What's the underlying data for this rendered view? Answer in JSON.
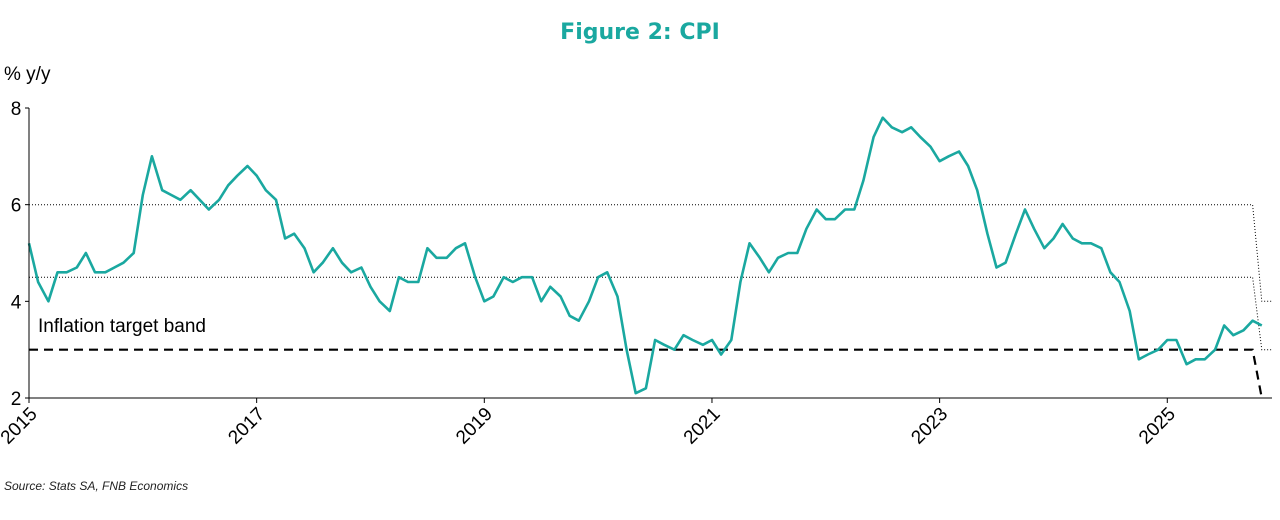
{
  "figure": {
    "title": "Figure 2: CPI",
    "source": "Source: Stats SA, FNB Economics"
  },
  "colors": {
    "cpi_line": "#1aa8a0",
    "band_line": "#000000",
    "title": "#1aa8a0"
  },
  "chart_data": {
    "type": "line",
    "title": "Figure 2: CPI",
    "ylabel": "% y/y",
    "xlabel": "",
    "ylim": [
      2,
      8
    ],
    "xlim": [
      2015,
      2025.92
    ],
    "y_ticks": [
      "2",
      "4",
      "6",
      "8"
    ],
    "x_ticks": [
      "2015",
      "2017",
      "2019",
      "2021",
      "2023",
      "2025"
    ],
    "grid": false,
    "legend": "none",
    "annotations": [
      "Inflation target band"
    ],
    "series": [
      {
        "values_format": "[year_fraction, percent]",
        "x_step": "monthly",
        "points": [
          [
            2015.0,
            5.2
          ],
          [
            2015.08,
            4.4
          ],
          [
            2015.17,
            4.0
          ],
          [
            2015.25,
            4.6
          ],
          [
            2015.33,
            4.6
          ],
          [
            2015.42,
            4.7
          ],
          [
            2015.5,
            5.0
          ],
          [
            2015.58,
            4.6
          ],
          [
            2015.67,
            4.6
          ],
          [
            2015.75,
            4.7
          ],
          [
            2015.83,
            4.8
          ],
          [
            2015.92,
            5.0
          ],
          [
            2016.0,
            6.2
          ],
          [
            2016.08,
            7.0
          ],
          [
            2016.17,
            6.3
          ],
          [
            2016.25,
            6.2
          ],
          [
            2016.33,
            6.1
          ],
          [
            2016.42,
            6.3
          ],
          [
            2016.5,
            6.1
          ],
          [
            2016.58,
            5.9
          ],
          [
            2016.67,
            6.1
          ],
          [
            2016.75,
            6.4
          ],
          [
            2016.83,
            6.6
          ],
          [
            2016.92,
            6.8
          ],
          [
            2017.0,
            6.6
          ],
          [
            2017.08,
            6.3
          ],
          [
            2017.17,
            6.1
          ],
          [
            2017.25,
            5.3
          ],
          [
            2017.33,
            5.4
          ],
          [
            2017.42,
            5.1
          ],
          [
            2017.5,
            4.6
          ],
          [
            2017.58,
            4.8
          ],
          [
            2017.67,
            5.1
          ],
          [
            2017.75,
            4.8
          ],
          [
            2017.83,
            4.6
          ],
          [
            2017.92,
            4.7
          ],
          [
            2018.0,
            4.3
          ],
          [
            2018.08,
            4.0
          ],
          [
            2018.17,
            3.8
          ],
          [
            2018.25,
            4.5
          ],
          [
            2018.33,
            4.4
          ],
          [
            2018.42,
            4.4
          ],
          [
            2018.5,
            5.1
          ],
          [
            2018.58,
            4.9
          ],
          [
            2018.67,
            4.9
          ],
          [
            2018.75,
            5.1
          ],
          [
            2018.83,
            5.2
          ],
          [
            2018.92,
            4.5
          ],
          [
            2019.0,
            4.0
          ],
          [
            2019.08,
            4.1
          ],
          [
            2019.17,
            4.5
          ],
          [
            2019.25,
            4.4
          ],
          [
            2019.33,
            4.5
          ],
          [
            2019.42,
            4.5
          ],
          [
            2019.5,
            4.0
          ],
          [
            2019.58,
            4.3
          ],
          [
            2019.67,
            4.1
          ],
          [
            2019.75,
            3.7
          ],
          [
            2019.83,
            3.6
          ],
          [
            2019.92,
            4.0
          ],
          [
            2020.0,
            4.5
          ],
          [
            2020.08,
            4.6
          ],
          [
            2020.17,
            4.1
          ],
          [
            2020.25,
            3.0
          ],
          [
            2020.33,
            2.1
          ],
          [
            2020.42,
            2.2
          ],
          [
            2020.5,
            3.2
          ],
          [
            2020.58,
            3.1
          ],
          [
            2020.67,
            3.0
          ],
          [
            2020.75,
            3.3
          ],
          [
            2020.83,
            3.2
          ],
          [
            2020.92,
            3.1
          ],
          [
            2021.0,
            3.2
          ],
          [
            2021.08,
            2.9
          ],
          [
            2021.17,
            3.2
          ],
          [
            2021.25,
            4.4
          ],
          [
            2021.33,
            5.2
          ],
          [
            2021.42,
            4.9
          ],
          [
            2021.5,
            4.6
          ],
          [
            2021.58,
            4.9
          ],
          [
            2021.67,
            5.0
          ],
          [
            2021.75,
            5.0
          ],
          [
            2021.83,
            5.5
          ],
          [
            2021.92,
            5.9
          ],
          [
            2022.0,
            5.7
          ],
          [
            2022.08,
            5.7
          ],
          [
            2022.17,
            5.9
          ],
          [
            2022.25,
            5.9
          ],
          [
            2022.33,
            6.5
          ],
          [
            2022.42,
            7.4
          ],
          [
            2022.5,
            7.8
          ],
          [
            2022.58,
            7.6
          ],
          [
            2022.67,
            7.5
          ],
          [
            2022.75,
            7.6
          ],
          [
            2022.83,
            7.4
          ],
          [
            2022.92,
            7.2
          ],
          [
            2023.0,
            6.9
          ],
          [
            2023.08,
            7.0
          ],
          [
            2023.17,
            7.1
          ],
          [
            2023.25,
            6.8
          ],
          [
            2023.33,
            6.3
          ],
          [
            2023.42,
            5.4
          ],
          [
            2023.5,
            4.7
          ],
          [
            2023.58,
            4.8
          ],
          [
            2023.67,
            5.4
          ],
          [
            2023.75,
            5.9
          ],
          [
            2023.83,
            5.5
          ],
          [
            2023.92,
            5.1
          ],
          [
            2024.0,
            5.3
          ],
          [
            2024.08,
            5.6
          ],
          [
            2024.17,
            5.3
          ],
          [
            2024.25,
            5.2
          ],
          [
            2024.33,
            5.2
          ],
          [
            2024.42,
            5.1
          ],
          [
            2024.5,
            4.6
          ],
          [
            2024.58,
            4.4
          ],
          [
            2024.67,
            3.8
          ],
          [
            2024.75,
            2.8
          ],
          [
            2024.83,
            2.9
          ],
          [
            2024.92,
            3.0
          ],
          [
            2025.0,
            3.2
          ],
          [
            2025.08,
            3.2
          ],
          [
            2025.17,
            2.7
          ],
          [
            2025.25,
            2.8
          ],
          [
            2025.33,
            2.8
          ],
          [
            2025.42,
            3.0
          ],
          [
            2025.5,
            3.5
          ],
          [
            2025.58,
            3.3
          ],
          [
            2025.67,
            3.4
          ],
          [
            2025.75,
            3.6
          ],
          [
            2025.83,
            3.5
          ]
        ]
      },
      {
        "values_format": "[year_fraction, percent]",
        "style": "dashed",
        "points": [
          [
            2015.0,
            3.0
          ],
          [
            2025.7,
            3.0
          ],
          [
            2025.75,
            3.0
          ],
          [
            2025.83,
            2.0
          ]
        ]
      },
      {
        "values_format": "[year_fraction, percent]",
        "style": "dotted",
        "points": [
          [
            2015.0,
            6.0
          ],
          [
            2025.7,
            6.0
          ],
          [
            2025.75,
            6.0
          ],
          [
            2025.83,
            4.0
          ],
          [
            2025.92,
            4.0
          ]
        ]
      },
      {
        "values_format": "[year_fraction, percent]",
        "style": "dotted",
        "points": [
          [
            2015.0,
            4.5
          ],
          [
            2025.7,
            4.5
          ],
          [
            2025.75,
            4.5
          ],
          [
            2025.83,
            3.0
          ],
          [
            2025.92,
            3.0
          ]
        ]
      }
    ]
  }
}
